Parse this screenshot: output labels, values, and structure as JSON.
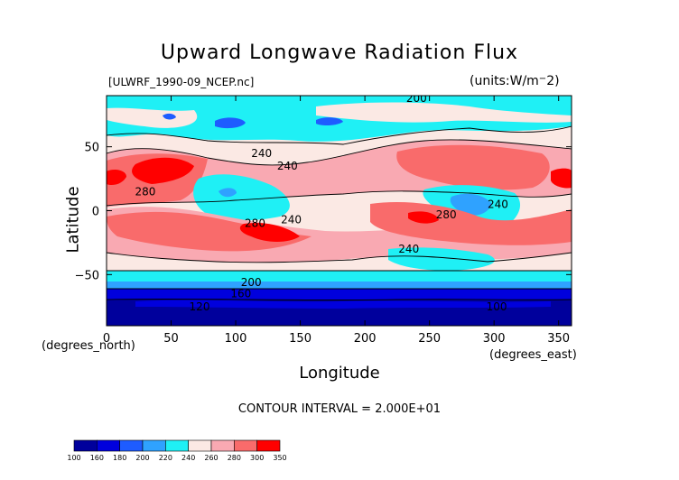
{
  "chart_data": {
    "type": "heatmap",
    "title": "Upward Longwave Radiation Flux",
    "file_label": "[ULWRF_1990-09_NCEP.nc]",
    "units_label": "(units:W/m^2)",
    "xlabel": "Longitude",
    "ylabel": "Latitude",
    "x_unit_label": "(degrees_east)",
    "y_unit_label": "(degrees_north)",
    "xlim": [
      0,
      360
    ],
    "ylim": [
      -90,
      90
    ],
    "x_ticks": [
      0,
      50,
      100,
      150,
      200,
      250,
      300,
      350
    ],
    "y_ticks": [
      -50,
      0,
      50
    ],
    "contour_interval_text": "CONTOUR INTERVAL = 2.000E+01",
    "colorbar": {
      "bounds": [
        100,
        160,
        180,
        200,
        220,
        240,
        260,
        280,
        300,
        350
      ],
      "colors": [
        "#00009c",
        "#0000dd",
        "#1e5cff",
        "#2fa2ff",
        "#1ff0f5",
        "#fbe9e4",
        "#f9a9b2",
        "#f96b6b",
        "#ff0000"
      ]
    },
    "contour_labels": [
      {
        "text": "200",
        "lon": 240,
        "lat": 88
      },
      {
        "text": "240",
        "lon": 120,
        "lat": 45
      },
      {
        "text": "240",
        "lon": 140,
        "lat": 35
      },
      {
        "text": "280",
        "lon": 30,
        "lat": 15
      },
      {
        "text": "280",
        "lon": 115,
        "lat": -10
      },
      {
        "text": "240",
        "lon": 143,
        "lat": -7
      },
      {
        "text": "280",
        "lon": 263,
        "lat": -3
      },
      {
        "text": "240",
        "lon": 303,
        "lat": 5
      },
      {
        "text": "240",
        "lon": 234,
        "lat": -30
      },
      {
        "text": "200",
        "lon": 112,
        "lat": -56
      },
      {
        "text": "160",
        "lon": 104,
        "lat": -65
      },
      {
        "text": "120",
        "lon": 72,
        "lat": -75
      },
      {
        "text": "100",
        "lon": 302,
        "lat": -75
      }
    ],
    "grid": false
  }
}
